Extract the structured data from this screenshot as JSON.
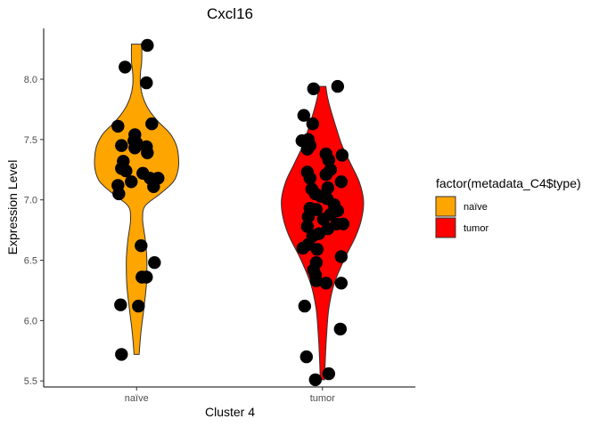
{
  "chart_data": {
    "type": "violin",
    "title": "Cxcl16",
    "xlabel": "Cluster 4",
    "ylabel": "Expression Level",
    "ylim": [
      5.45,
      8.42
    ],
    "yticks": [
      5.5,
      6.0,
      6.5,
      7.0,
      7.5,
      8.0
    ],
    "ytick_labels": [
      "5.5",
      "6.0",
      "6.5",
      "7.0",
      "7.5",
      "8.0"
    ],
    "categories": [
      "naïve",
      "tumor"
    ],
    "grid": false,
    "legend": {
      "title": "factor(metadata_C4$type)",
      "placement": "right",
      "entries": [
        {
          "label": "naïve",
          "color": "#FFA500"
        },
        {
          "label": "tumor",
          "color": "#FF0000"
        }
      ]
    },
    "series": [
      {
        "name": "naïve",
        "color": "#FFA500",
        "y_range": [
          5.72,
          8.29
        ],
        "density": [
          [
            5.72,
            0.06
          ],
          [
            5.9,
            0.1
          ],
          [
            6.1,
            0.17
          ],
          [
            6.3,
            0.23
          ],
          [
            6.5,
            0.24
          ],
          [
            6.65,
            0.21
          ],
          [
            6.75,
            0.17
          ],
          [
            6.85,
            0.14
          ],
          [
            6.95,
            0.2
          ],
          [
            7.05,
            0.55
          ],
          [
            7.15,
            0.86
          ],
          [
            7.25,
            0.97
          ],
          [
            7.35,
            0.98
          ],
          [
            7.45,
            0.93
          ],
          [
            7.55,
            0.78
          ],
          [
            7.65,
            0.5
          ],
          [
            7.75,
            0.28
          ],
          [
            7.85,
            0.15
          ],
          [
            7.95,
            0.09
          ],
          [
            8.05,
            0.09
          ],
          [
            8.15,
            0.12
          ],
          [
            8.29,
            0.12
          ]
        ],
        "points": [
          [
            0.12,
            8.28
          ],
          [
            -0.13,
            8.1
          ],
          [
            0.11,
            7.97
          ],
          [
            -0.21,
            7.61
          ],
          [
            0.17,
            7.63
          ],
          [
            -0.02,
            7.54
          ],
          [
            -0.03,
            7.49
          ],
          [
            0.0,
            7.47
          ],
          [
            -0.17,
            7.45
          ],
          [
            0.11,
            7.44
          ],
          [
            -0.02,
            7.43
          ],
          [
            0.12,
            7.39
          ],
          [
            -0.15,
            7.32
          ],
          [
            -0.17,
            7.26
          ],
          [
            -0.12,
            7.24
          ],
          [
            0.07,
            7.22
          ],
          [
            0.15,
            7.18
          ],
          [
            0.24,
            7.18
          ],
          [
            -0.06,
            7.15
          ],
          [
            0.19,
            7.11
          ],
          [
            -0.21,
            7.12
          ],
          [
            -0.2,
            7.05
          ],
          [
            0.05,
            6.62
          ],
          [
            0.2,
            6.48
          ],
          [
            0.06,
            6.36
          ],
          [
            0.11,
            6.36
          ],
          [
            -0.18,
            6.13
          ],
          [
            0.02,
            6.12
          ],
          [
            -0.17,
            5.72
          ]
        ]
      },
      {
        "name": "tumor",
        "color": "#FF0000",
        "y_range": [
          5.51,
          7.94
        ],
        "density": [
          [
            5.51,
            0.05
          ],
          [
            5.7,
            0.07
          ],
          [
            5.9,
            0.1
          ],
          [
            6.1,
            0.15
          ],
          [
            6.3,
            0.27
          ],
          [
            6.5,
            0.5
          ],
          [
            6.7,
            0.78
          ],
          [
            6.85,
            0.92
          ],
          [
            7.0,
            0.96
          ],
          [
            7.15,
            0.86
          ],
          [
            7.3,
            0.66
          ],
          [
            7.45,
            0.46
          ],
          [
            7.6,
            0.32
          ],
          [
            7.75,
            0.19
          ],
          [
            7.85,
            0.12
          ],
          [
            7.94,
            0.08
          ]
        ],
        "points": [
          [
            0.17,
            7.94
          ],
          [
            -0.1,
            7.92
          ],
          [
            -0.21,
            7.7
          ],
          [
            -0.11,
            7.63
          ],
          [
            -0.23,
            7.49
          ],
          [
            -0.16,
            7.5
          ],
          [
            -0.14,
            7.45
          ],
          [
            -0.17,
            7.42
          ],
          [
            0.04,
            7.38
          ],
          [
            0.22,
            7.37
          ],
          [
            0.07,
            7.33
          ],
          [
            -0.17,
            7.23
          ],
          [
            0.04,
            7.21
          ],
          [
            0.09,
            7.25
          ],
          [
            -0.14,
            7.18
          ],
          [
            0.21,
            7.15
          ],
          [
            0.06,
            7.1
          ],
          [
            -0.12,
            7.09
          ],
          [
            -0.08,
            7.05
          ],
          [
            0.05,
            7.01
          ],
          [
            -0.02,
            7.03
          ],
          [
            0.13,
            6.96
          ],
          [
            -0.14,
            6.93
          ],
          [
            -0.07,
            6.92
          ],
          [
            0.17,
            6.91
          ],
          [
            0.09,
            6.88
          ],
          [
            -0.16,
            6.86
          ],
          [
            0.01,
            6.84
          ],
          [
            0.16,
            6.8
          ],
          [
            0.23,
            6.8
          ],
          [
            -0.17,
            6.78
          ],
          [
            0.06,
            6.76
          ],
          [
            -0.04,
            6.72
          ],
          [
            -0.11,
            6.7
          ],
          [
            -0.16,
            6.63
          ],
          [
            -0.06,
            6.59
          ],
          [
            -0.22,
            6.6
          ],
          [
            -0.07,
            6.48
          ],
          [
            -0.1,
            6.42
          ],
          [
            -0.08,
            6.38
          ],
          [
            -0.07,
            6.33
          ],
          [
            0.04,
            6.31
          ],
          [
            0.21,
            6.31
          ],
          [
            0.21,
            6.53
          ],
          [
            -0.2,
            6.12
          ],
          [
            0.2,
            5.93
          ],
          [
            -0.18,
            5.7
          ],
          [
            -0.08,
            5.51
          ],
          [
            0.07,
            5.56
          ]
        ]
      }
    ]
  }
}
